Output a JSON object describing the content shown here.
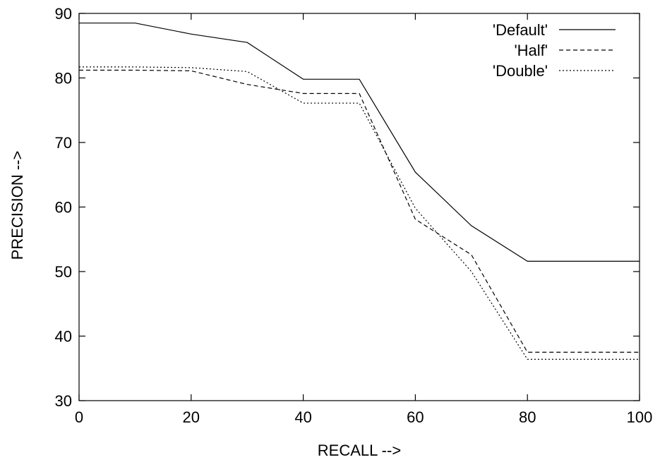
{
  "chart_data": {
    "type": "line",
    "xlabel": "RECALL -->",
    "ylabel": "PRECISION -->",
    "xlim": [
      0,
      100
    ],
    "ylim": [
      30,
      90
    ],
    "x_ticks": [
      0,
      20,
      40,
      60,
      80,
      100
    ],
    "y_ticks": [
      30,
      40,
      50,
      60,
      70,
      80,
      90
    ],
    "grid": false,
    "legend_position": "top-right",
    "x": [
      0,
      10,
      20,
      30,
      40,
      50,
      60,
      70,
      80,
      90,
      100
    ],
    "series": [
      {
        "name": "'Default'",
        "dash": "solid",
        "color": "#000000",
        "values": [
          88.5,
          88.5,
          86.8,
          85.5,
          79.8,
          79.8,
          65.4,
          57.1,
          51.6,
          51.6,
          51.6
        ]
      },
      {
        "name": "'Half'",
        "dash": "dashed",
        "color": "#000000",
        "values": [
          81.2,
          81.2,
          81.1,
          79.0,
          77.6,
          77.6,
          58.1,
          52.6,
          37.5,
          37.5,
          37.5
        ]
      },
      {
        "name": "'Double'",
        "dash": "dotted",
        "color": "#000000",
        "values": [
          81.7,
          81.7,
          81.6,
          81.0,
          76.1,
          76.1,
          59.8,
          50.0,
          36.4,
          36.4,
          36.4
        ]
      }
    ]
  }
}
